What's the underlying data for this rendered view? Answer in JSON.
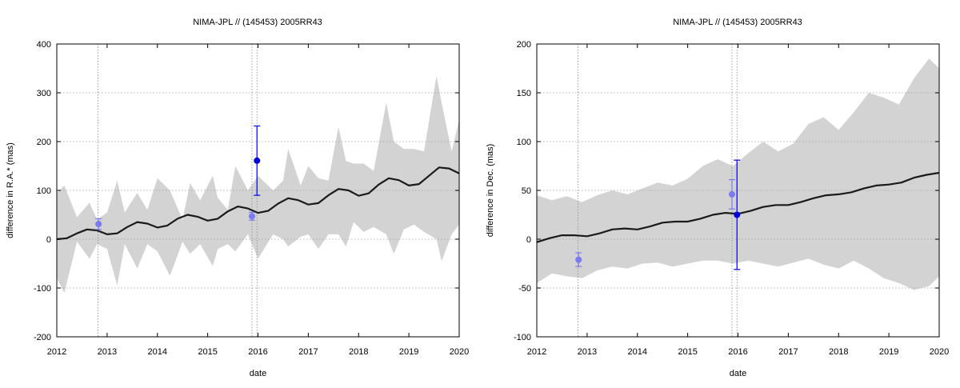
{
  "chart_data": [
    {
      "type": "line",
      "title": "NIMA-JPL // (145453) 2005RR43",
      "xlabel": "date",
      "ylabel": "difference in R.A.* (mas)",
      "xlim": [
        2012,
        2020
      ],
      "ylim": [
        -200,
        400
      ],
      "xticks": [
        2012,
        2013,
        2014,
        2015,
        2016,
        2017,
        2018,
        2019,
        2020
      ],
      "yticks": [
        -200,
        -100,
        0,
        100,
        200,
        300,
        400
      ],
      "grid": true,
      "vlines": [
        2012.82,
        2015.88,
        2015.98
      ],
      "colors": {
        "band": "#d3d3d3",
        "line": "#1a1a1a",
        "obs_light": "#7b7bf0",
        "obs_dark": "#0000dd"
      },
      "series": [
        {
          "kind": "uncertainty_band",
          "x": [
            2012.0,
            2012.15,
            2012.4,
            2012.65,
            2012.8,
            2013.0,
            2013.2,
            2013.35,
            2013.6,
            2013.8,
            2014.0,
            2014.25,
            2014.5,
            2014.65,
            2014.85,
            2015.1,
            2015.2,
            2015.4,
            2015.55,
            2015.8,
            2016.0,
            2016.3,
            2016.5,
            2016.6,
            2016.85,
            2017.0,
            2017.2,
            2017.4,
            2017.6,
            2017.75,
            2017.9,
            2018.1,
            2018.3,
            2018.55,
            2018.7,
            2018.9,
            2019.1,
            2019.3,
            2019.55,
            2019.65,
            2019.85,
            2020.0
          ],
          "upper": [
            95,
            110,
            45,
            75,
            40,
            55,
            120,
            55,
            95,
            60,
            125,
            100,
            40,
            115,
            80,
            130,
            85,
            60,
            150,
            100,
            130,
            100,
            120,
            185,
            110,
            150,
            125,
            120,
            230,
            160,
            155,
            155,
            140,
            280,
            200,
            185,
            185,
            180,
            335,
            280,
            180,
            245
          ],
          "lower": [
            -80,
            -110,
            -5,
            -40,
            -10,
            -20,
            -95,
            -10,
            -60,
            -10,
            -25,
            -75,
            -5,
            -30,
            -10,
            -55,
            -20,
            -10,
            -25,
            10,
            -40,
            10,
            0,
            -15,
            5,
            10,
            -20,
            10,
            10,
            -15,
            35,
            15,
            25,
            10,
            -30,
            20,
            30,
            15,
            0,
            -45,
            10,
            30
          ]
        },
        {
          "kind": "prediction",
          "x": [
            2012.0,
            2012.2,
            2012.4,
            2012.6,
            2012.8,
            2013.0,
            2013.2,
            2013.4,
            2013.6,
            2013.8,
            2014.0,
            2014.2,
            2014.4,
            2014.6,
            2014.8,
            2015.0,
            2015.2,
            2015.4,
            2015.6,
            2015.8,
            2016.0,
            2016.2,
            2016.4,
            2016.6,
            2016.8,
            2017.0,
            2017.2,
            2017.4,
            2017.6,
            2017.8,
            2018.0,
            2018.2,
            2018.4,
            2018.6,
            2018.8,
            2019.0,
            2019.2,
            2019.4,
            2019.6,
            2019.8,
            2020.0
          ],
          "y": [
            0,
            2,
            12,
            20,
            18,
            10,
            12,
            25,
            35,
            32,
            24,
            28,
            42,
            50,
            46,
            38,
            42,
            57,
            67,
            63,
            54,
            58,
            73,
            84,
            80,
            71,
            74,
            90,
            103,
            100,
            89,
            94,
            112,
            125,
            121,
            110,
            113,
            130,
            147,
            145,
            135
          ]
        },
        {
          "kind": "observations",
          "points": [
            {
              "x": 2012.83,
              "y": 31,
              "err": 11,
              "shade": "light"
            },
            {
              "x": 2015.88,
              "y": 47,
              "err": 8,
              "shade": "light"
            },
            {
              "x": 2015.98,
              "y": 161,
              "err": 71,
              "shade": "dark"
            }
          ]
        }
      ]
    },
    {
      "type": "line",
      "title": "NIMA-JPL // (145453) 2005RR43",
      "xlabel": "date",
      "ylabel": "difference in Dec. (mas)",
      "xlim": [
        2012,
        2020
      ],
      "ylim": [
        -100,
        200
      ],
      "xticks": [
        2012,
        2013,
        2014,
        2015,
        2016,
        2017,
        2018,
        2019,
        2020
      ],
      "yticks": [
        -100,
        -50,
        0,
        50,
        100,
        150,
        200
      ],
      "grid": true,
      "vlines": [
        2012.82,
        2015.88,
        2015.98
      ],
      "colors": {
        "band": "#d3d3d3",
        "line": "#1a1a1a",
        "obs_light": "#7b7bf0",
        "obs_dark": "#0000dd"
      },
      "series": [
        {
          "kind": "uncertainty_band",
          "x": [
            2012.0,
            2012.3,
            2012.6,
            2012.9,
            2013.2,
            2013.5,
            2013.8,
            2014.1,
            2014.4,
            2014.7,
            2015.0,
            2015.3,
            2015.6,
            2015.9,
            2016.2,
            2016.5,
            2016.8,
            2017.1,
            2017.4,
            2017.7,
            2018.0,
            2018.3,
            2018.6,
            2018.9,
            2019.2,
            2019.5,
            2019.8,
            2020.0
          ],
          "upper": [
            45,
            40,
            44,
            38,
            45,
            50,
            46,
            52,
            58,
            55,
            62,
            75,
            82,
            75,
            88,
            100,
            90,
            98,
            118,
            125,
            112,
            130,
            150,
            145,
            138,
            165,
            185,
            175
          ],
          "lower": [
            -45,
            -35,
            -38,
            -40,
            -32,
            -28,
            -30,
            -25,
            -24,
            -28,
            -25,
            -22,
            -22,
            -25,
            -22,
            -25,
            -28,
            -24,
            -20,
            -26,
            -30,
            -22,
            -30,
            -40,
            -45,
            -52,
            -48,
            -38
          ]
        },
        {
          "kind": "prediction",
          "x": [
            2012.0,
            2012.25,
            2012.5,
            2012.75,
            2013.0,
            2013.25,
            2013.5,
            2013.75,
            2014.0,
            2014.25,
            2014.5,
            2014.75,
            2015.0,
            2015.25,
            2015.5,
            2015.75,
            2016.0,
            2016.25,
            2016.5,
            2016.75,
            2017.0,
            2017.25,
            2017.5,
            2017.75,
            2018.0,
            2018.25,
            2018.5,
            2018.75,
            2019.0,
            2019.25,
            2019.5,
            2019.75,
            2020.0
          ],
          "y": [
            -3,
            1,
            4,
            4,
            3,
            6,
            10,
            11,
            10,
            13,
            17,
            18,
            18,
            21,
            25,
            27,
            26,
            29,
            33,
            35,
            35,
            38,
            42,
            45,
            46,
            48,
            52,
            55,
            56,
            58,
            63,
            66,
            68
          ]
        },
        {
          "kind": "observations",
          "points": [
            {
              "x": 2012.83,
              "y": -21,
              "err": 7,
              "shade": "light"
            },
            {
              "x": 2015.88,
              "y": 46,
              "err": 15,
              "shade": "light"
            },
            {
              "x": 2015.98,
              "y": 25,
              "err": 56,
              "shade": "dark"
            }
          ]
        }
      ]
    }
  ]
}
